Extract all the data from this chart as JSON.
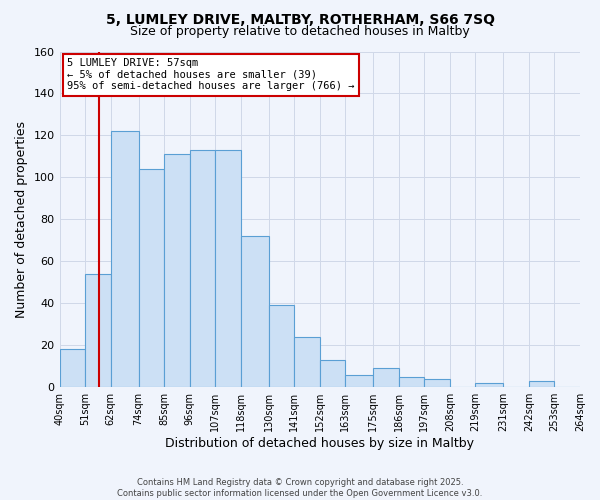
{
  "title_line1": "5, LUMLEY DRIVE, MALTBY, ROTHERHAM, S66 7SQ",
  "title_line2": "Size of property relative to detached houses in Maltby",
  "xlabel": "Distribution of detached houses by size in Maltby",
  "ylabel": "Number of detached properties",
  "bar_left_edges": [
    40,
    51,
    62,
    74,
    85,
    96,
    107,
    118,
    130,
    141,
    152,
    163,
    175,
    186,
    197,
    208,
    219,
    231,
    242,
    253
  ],
  "bar_widths": [
    11,
    11,
    12,
    11,
    11,
    11,
    11,
    12,
    11,
    11,
    11,
    12,
    11,
    11,
    11,
    11,
    12,
    11,
    11,
    11
  ],
  "bar_heights": [
    18,
    54,
    122,
    104,
    111,
    113,
    113,
    72,
    39,
    24,
    13,
    6,
    9,
    5,
    4,
    0,
    2,
    0,
    3,
    0
  ],
  "bar_color": "#cce0f5",
  "bar_edge_color": "#5a9fd4",
  "xlim": [
    40,
    264
  ],
  "ylim": [
    0,
    160
  ],
  "yticks": [
    0,
    20,
    40,
    60,
    80,
    100,
    120,
    140,
    160
  ],
  "xtick_labels": [
    "40sqm",
    "51sqm",
    "62sqm",
    "74sqm",
    "85sqm",
    "96sqm",
    "107sqm",
    "118sqm",
    "130sqm",
    "141sqm",
    "152sqm",
    "163sqm",
    "175sqm",
    "186sqm",
    "197sqm",
    "208sqm",
    "219sqm",
    "231sqm",
    "242sqm",
    "253sqm",
    "264sqm"
  ],
  "xtick_positions": [
    40,
    51,
    62,
    74,
    85,
    96,
    107,
    118,
    130,
    141,
    152,
    163,
    175,
    186,
    197,
    208,
    219,
    231,
    242,
    253,
    264
  ],
  "property_line_x": 57,
  "property_line_color": "#cc0000",
  "annotation_title": "5 LUMLEY DRIVE: 57sqm",
  "annotation_line1": "← 5% of detached houses are smaller (39)",
  "annotation_line2": "95% of semi-detached houses are larger (766) →",
  "annotation_box_color": "#ffffff",
  "annotation_box_edge_color": "#cc0000",
  "grid_color": "#d0d8e8",
  "bg_color": "#f0f4fc",
  "footer_line1": "Contains HM Land Registry data © Crown copyright and database right 2025.",
  "footer_line2": "Contains public sector information licensed under the Open Government Licence v3.0."
}
